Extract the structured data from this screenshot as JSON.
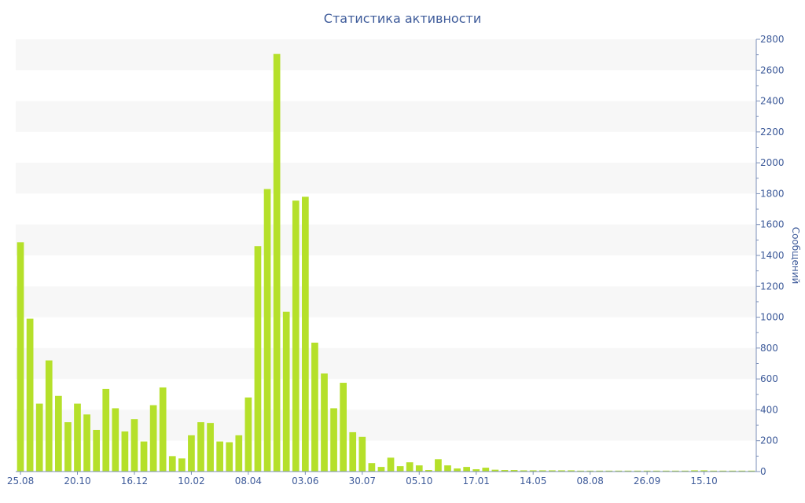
{
  "chart_data": {
    "type": "bar",
    "title": "Статистика активности",
    "ylabel": "Сообщений",
    "ylim": [
      0,
      2800
    ],
    "yticks": [
      0,
      200,
      400,
      600,
      800,
      1000,
      1200,
      1400,
      1600,
      1800,
      2000,
      2200,
      2400,
      2600,
      2800
    ],
    "grid": "alternating horizontal bands",
    "y_axis_side": "right",
    "bar_color": "#b5e02a",
    "band_color": "#f7f7f7",
    "text_color": "#3e5b9a",
    "x_labels": [
      {
        "index": 0,
        "label": "25.08"
      },
      {
        "index": 6,
        "label": "20.10"
      },
      {
        "index": 12,
        "label": "16.12"
      },
      {
        "index": 18,
        "label": "10.02"
      },
      {
        "index": 24,
        "label": "08.04"
      },
      {
        "index": 30,
        "label": "03.06"
      },
      {
        "index": 36,
        "label": "30.07"
      },
      {
        "index": 42,
        "label": "05.10"
      },
      {
        "index": 48,
        "label": "17.01"
      },
      {
        "index": 54,
        "label": "14.05"
      },
      {
        "index": 60,
        "label": "08.08"
      },
      {
        "index": 66,
        "label": "26.09"
      },
      {
        "index": 72,
        "label": "15.10"
      }
    ],
    "values": [
      1485,
      990,
      440,
      720,
      490,
      320,
      440,
      370,
      270,
      535,
      410,
      260,
      340,
      195,
      430,
      545,
      100,
      85,
      235,
      320,
      315,
      195,
      190,
      235,
      480,
      1460,
      1830,
      2705,
      1035,
      1755,
      1780,
      835,
      635,
      410,
      575,
      255,
      225,
      55,
      30,
      90,
      35,
      60,
      40,
      10,
      80,
      40,
      20,
      30,
      15,
      25,
      12,
      10,
      10,
      8,
      8,
      8,
      8,
      8,
      8,
      6,
      6,
      6,
      6,
      6,
      6,
      6,
      6,
      6,
      6,
      6,
      6,
      8,
      8,
      6,
      6,
      6,
      6,
      6
    ]
  }
}
